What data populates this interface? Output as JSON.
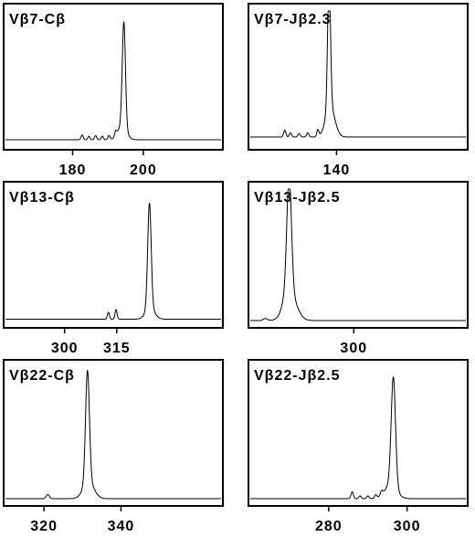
{
  "chart_data": [
    {
      "type": "line",
      "title": "Vβ7-Cβ",
      "xlabel": "",
      "ylabel": "",
      "xlim": [
        161,
        222
      ],
      "ylim": [
        0,
        1
      ],
      "ticks": [
        180,
        200
      ],
      "tick_labels": [
        "180",
        "200"
      ],
      "series": [
        {
          "baseline": 0.06,
          "peaks": [
            {
              "x": 194.5,
              "height": 0.77,
              "width": 0.45
            },
            {
              "x": 194.0,
              "height": 0.1,
              "width": 1.2
            },
            {
              "x": 182.7,
              "height": 0.035,
              "width": 0.3
            },
            {
              "x": 184.6,
              "height": 0.025,
              "width": 0.3
            },
            {
              "x": 186.5,
              "height": 0.03,
              "width": 0.3
            },
            {
              "x": 188.4,
              "height": 0.025,
              "width": 0.3
            },
            {
              "x": 190.3,
              "height": 0.03,
              "width": 0.3
            },
            {
              "x": 192.2,
              "height": 0.035,
              "width": 0.3
            }
          ]
        }
      ]
    },
    {
      "type": "line",
      "title": "Vβ7-Jβ2.3",
      "xlabel": "",
      "ylabel": "",
      "xlim": [
        110,
        185
      ],
      "ylim": [
        0,
        1
      ],
      "ticks": [
        140
      ],
      "tick_labels": [
        "140"
      ],
      "series": [
        {
          "baseline": 0.08,
          "peaks": [
            {
              "x": 137.4,
              "height": 0.97,
              "width": 0.5
            },
            {
              "x": 137.8,
              "height": 0.22,
              "width": 1.6
            },
            {
              "x": 133.5,
              "height": 0.05,
              "width": 0.35
            },
            {
              "x": 122.0,
              "height": 0.05,
              "width": 0.4
            },
            {
              "x": 124.0,
              "height": 0.03,
              "width": 0.4
            },
            {
              "x": 127.0,
              "height": 0.025,
              "width": 0.4
            },
            {
              "x": 130.0,
              "height": 0.03,
              "width": 0.4
            }
          ]
        }
      ]
    },
    {
      "type": "line",
      "title": "Vβ13-Cβ",
      "xlabel": "",
      "ylabel": "",
      "xlim": [
        283,
        345
      ],
      "ylim": [
        0,
        1
      ],
      "ticks": [
        300,
        315
      ],
      "tick_labels": [
        "300",
        "315"
      ],
      "series": [
        {
          "baseline": 0.05,
          "peaks": [
            {
              "x": 324.4,
              "height": 0.77,
              "width": 0.5
            },
            {
              "x": 324.6,
              "height": 0.08,
              "width": 1.3
            },
            {
              "x": 312.6,
              "height": 0.05,
              "width": 0.3
            },
            {
              "x": 314.8,
              "height": 0.07,
              "width": 0.3
            }
          ]
        }
      ]
    },
    {
      "type": "line",
      "title": "Vβ13-Jβ2.5",
      "xlabel": "",
      "ylabel": "",
      "xlim": [
        276,
        326
      ],
      "ylim": [
        0,
        1
      ],
      "ticks": [
        300
      ],
      "tick_labels": [
        "300"
      ],
      "series": [
        {
          "baseline": 0.04,
          "peaks": [
            {
              "x": 285.0,
              "height": 0.88,
              "width": 0.55
            },
            {
              "x": 285.3,
              "height": 0.18,
              "width": 1.5
            },
            {
              "x": 283.5,
              "height": 0.03,
              "width": 0.5
            },
            {
              "x": 279.5,
              "height": 0.015,
              "width": 0.5
            }
          ]
        }
      ]
    },
    {
      "type": "line",
      "title": "Vβ22-Cβ",
      "xlabel": "",
      "ylabel": "",
      "xlim": [
        310,
        366
      ],
      "ylim": [
        0,
        1
      ],
      "ticks": [
        320,
        340
      ],
      "tick_labels": [
        "320",
        "340"
      ],
      "series": [
        {
          "baseline": 0.04,
          "peaks": [
            {
              "x": 331.3,
              "height": 0.82,
              "width": 0.5
            },
            {
              "x": 331.6,
              "height": 0.12,
              "width": 1.4
            },
            {
              "x": 321.0,
              "height": 0.03,
              "width": 0.4
            }
          ]
        }
      ]
    },
    {
      "type": "line",
      "title": "Vβ22-Jβ2.5",
      "xlabel": "",
      "ylabel": "",
      "xlim": [
        260,
        315
      ],
      "ylim": [
        0,
        1
      ],
      "ticks": [
        280,
        300
      ],
      "tick_labels": [
        "280",
        "300"
      ],
      "series": [
        {
          "baseline": 0.04,
          "peaks": [
            {
              "x": 296.5,
              "height": 0.8,
              "width": 0.55
            },
            {
              "x": 295.8,
              "height": 0.1,
              "width": 1.5
            },
            {
              "x": 286.0,
              "height": 0.05,
              "width": 0.3
            },
            {
              "x": 288.0,
              "height": 0.02,
              "width": 0.3
            },
            {
              "x": 290.0,
              "height": 0.02,
              "width": 0.3
            },
            {
              "x": 292.0,
              "height": 0.025,
              "width": 0.3
            },
            {
              "x": 293.5,
              "height": 0.03,
              "width": 0.3
            }
          ]
        }
      ]
    }
  ]
}
